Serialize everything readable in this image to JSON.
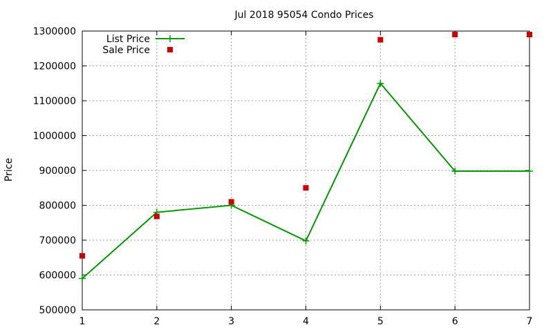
{
  "chart_data": {
    "type": "line",
    "title": "Jul 2018 95054 Condo Prices",
    "xlabel": "",
    "ylabel": "Price",
    "x": [
      1,
      2,
      3,
      4,
      5,
      6,
      7
    ],
    "xlim": [
      1,
      7
    ],
    "ylim": [
      500000,
      1300000
    ],
    "x_ticks": [
      "1",
      "2",
      "3",
      "4",
      "5",
      "6",
      "7"
    ],
    "y_ticks": [
      "500000",
      "600000",
      "700000",
      "800000",
      "900000",
      "1000000",
      "1100000",
      "1200000",
      "1300000"
    ],
    "grid": true,
    "legend_position": "top-left",
    "series": [
      {
        "name": "List Price",
        "style": "line-with-plus-markers",
        "color": "#009900",
        "values": [
          590000,
          780000,
          800000,
          698000,
          1150000,
          898000,
          898000
        ]
      },
      {
        "name": "Sale Price",
        "style": "square-markers",
        "color": "#cc0000",
        "values": [
          655000,
          768000,
          810000,
          850000,
          1275000,
          1290000,
          1290000
        ]
      }
    ]
  }
}
